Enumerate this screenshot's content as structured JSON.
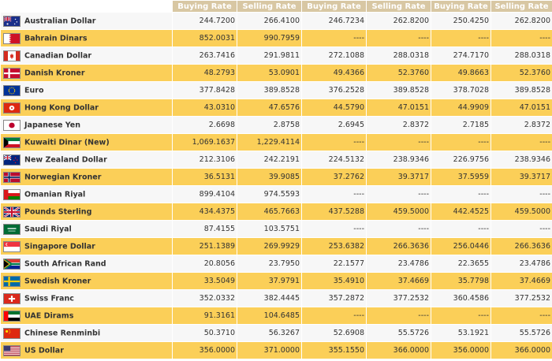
{
  "columns": [
    "Buying Rate",
    "Selling Rate",
    "Buying Rate",
    "Selling Rate",
    "Buying Rate",
    "Selling Rate"
  ],
  "rows": [
    {
      "flag": "australia-flag-icon",
      "name": "Australian Dollar",
      "values": [
        "244.7200",
        "266.4100",
        "246.7234",
        "262.8200",
        "250.4250",
        "262.8200"
      ]
    },
    {
      "flag": "bahrain-flag-icon",
      "name": "Bahrain Dinars",
      "values": [
        "852.0031",
        "990.7959",
        "----",
        "----",
        "----",
        "----"
      ]
    },
    {
      "flag": "canada-flag-icon",
      "name": "Canadian Dollar",
      "values": [
        "263.7416",
        "291.9811",
        "272.1088",
        "288.0318",
        "274.7170",
        "288.0318"
      ]
    },
    {
      "flag": "denmark-flag-icon",
      "name": "Danish Kroner",
      "values": [
        "48.2793",
        "53.0901",
        "49.4366",
        "52.3760",
        "49.8663",
        "52.3760"
      ]
    },
    {
      "flag": "eu-flag-icon",
      "name": "Euro",
      "values": [
        "377.8428",
        "389.8528",
        "376.2528",
        "389.8528",
        "378.7028",
        "389.8528"
      ]
    },
    {
      "flag": "hong-kong-flag-icon",
      "name": "Hong Kong Dollar",
      "values": [
        "43.0310",
        "47.6576",
        "44.5790",
        "47.0151",
        "44.9909",
        "47.0151"
      ]
    },
    {
      "flag": "japan-flag-icon",
      "name": "Japanese Yen",
      "values": [
        "2.6698",
        "2.8758",
        "2.6945",
        "2.8372",
        "2.7185",
        "2.8372"
      ]
    },
    {
      "flag": "kuwait-flag-icon",
      "name": "Kuwaiti Dinar (New)",
      "values": [
        "1,069.1637",
        "1,229.4114",
        "----",
        "----",
        "----",
        "----"
      ]
    },
    {
      "flag": "new-zealand-flag-icon",
      "name": "New Zealand Dollar",
      "values": [
        "212.3106",
        "242.2191",
        "224.5132",
        "238.9346",
        "226.9756",
        "238.9346"
      ]
    },
    {
      "flag": "norway-flag-icon",
      "name": "Norwegian Kroner",
      "values": [
        "36.5131",
        "39.9085",
        "37.2762",
        "39.3717",
        "37.5959",
        "39.3717"
      ]
    },
    {
      "flag": "oman-flag-icon",
      "name": "Omanian Riyal",
      "values": [
        "899.4104",
        "974.5593",
        "----",
        "----",
        "----",
        "----"
      ]
    },
    {
      "flag": "uk-flag-icon",
      "name": "Pounds Sterling",
      "values": [
        "434.4375",
        "465.7663",
        "437.5288",
        "459.5000",
        "442.4525",
        "459.5000"
      ]
    },
    {
      "flag": "saudi-flag-icon",
      "name": "Saudi Riyal",
      "values": [
        "87.4155",
        "103.5751",
        "----",
        "----",
        "----",
        "----"
      ]
    },
    {
      "flag": "singapore-flag-icon",
      "name": "Singapore Dollar",
      "values": [
        "251.1389",
        "269.9929",
        "253.6382",
        "266.3636",
        "256.0446",
        "266.3636"
      ]
    },
    {
      "flag": "south-africa-flag-icon",
      "name": "South African Rand",
      "values": [
        "20.8056",
        "23.7950",
        "22.1577",
        "23.4786",
        "22.3655",
        "23.4786"
      ]
    },
    {
      "flag": "sweden-flag-icon",
      "name": "Swedish Kroner",
      "values": [
        "33.5049",
        "37.9791",
        "35.4910",
        "37.4669",
        "35.7798",
        "37.4669"
      ]
    },
    {
      "flag": "switzerland-flag-icon",
      "name": "Swiss Franc",
      "values": [
        "352.0332",
        "382.4445",
        "357.2872",
        "377.2532",
        "360.4586",
        "377.2532"
      ]
    },
    {
      "flag": "uae-flag-icon",
      "name": "UAE Dirams",
      "values": [
        "91.3161",
        "104.6485",
        "----",
        "----",
        "----",
        "----"
      ]
    },
    {
      "flag": "china-flag-icon",
      "name": "Chinese Renminbi",
      "values": [
        "50.3710",
        "56.3267",
        "52.6908",
        "55.5726",
        "53.1921",
        "55.5726"
      ]
    },
    {
      "flag": "usa-flag-icon",
      "name": "US Dollar",
      "values": [
        "356.0000",
        "371.0000",
        "355.1550",
        "366.0000",
        "356.0000",
        "366.0000"
      ]
    }
  ]
}
